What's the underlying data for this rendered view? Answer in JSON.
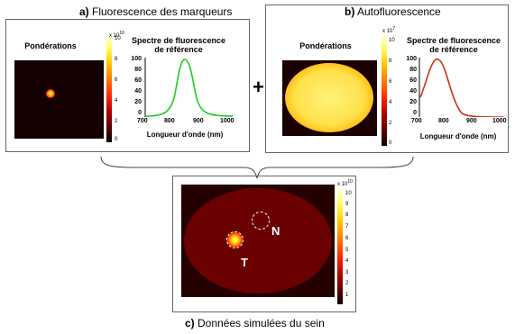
{
  "panel_a": {
    "letter": "a)",
    "title": " Fluorescence des marqueurs",
    "weights_label": "Pondérations",
    "colorbar_exponent": "x 10",
    "colorbar_exponent_power": "10",
    "colorbar_ticks": [
      "10",
      "8",
      "6",
      "4",
      "2",
      "0"
    ],
    "spectrum_title_1": "Spectre de fluorescence",
    "spectrum_title_2": "de référence",
    "y_ticks": [
      "100",
      "80",
      "60",
      "40",
      "20",
      "0"
    ],
    "x_ticks": [
      "700",
      "800",
      "900",
      "1000"
    ],
    "x_label": "Longueur d'onde (nm)",
    "curve_color": "#22cc22"
  },
  "plus_sign": "+",
  "panel_b": {
    "letter": "b)",
    "title": " Autofluorescence",
    "weights_label": "Pondérations",
    "colorbar_exponent": "x 10",
    "colorbar_exponent_power": "7",
    "colorbar_ticks": [
      "10",
      "8",
      "6",
      "4",
      "2",
      "0"
    ],
    "spectrum_title_1": "Spectre de fluorescence",
    "spectrum_title_2": "de référence",
    "y_ticks": [
      "100",
      "80",
      "60",
      "40",
      "20",
      "0"
    ],
    "x_ticks": [
      "700",
      "800",
      "900",
      "1000"
    ],
    "x_label": "Longueur d'onde (nm)",
    "curve_color": "#cc3311"
  },
  "panel_c": {
    "letter": "c)",
    "title": " Données simulées du sein",
    "colorbar_exponent": "x 10",
    "colorbar_exponent_power": "10",
    "colorbar_ticks": [
      "10",
      "9",
      "8",
      "7",
      "6",
      "5",
      "4",
      "3",
      "2",
      "1"
    ],
    "label_tumor": "T",
    "label_normal": "N"
  }
}
